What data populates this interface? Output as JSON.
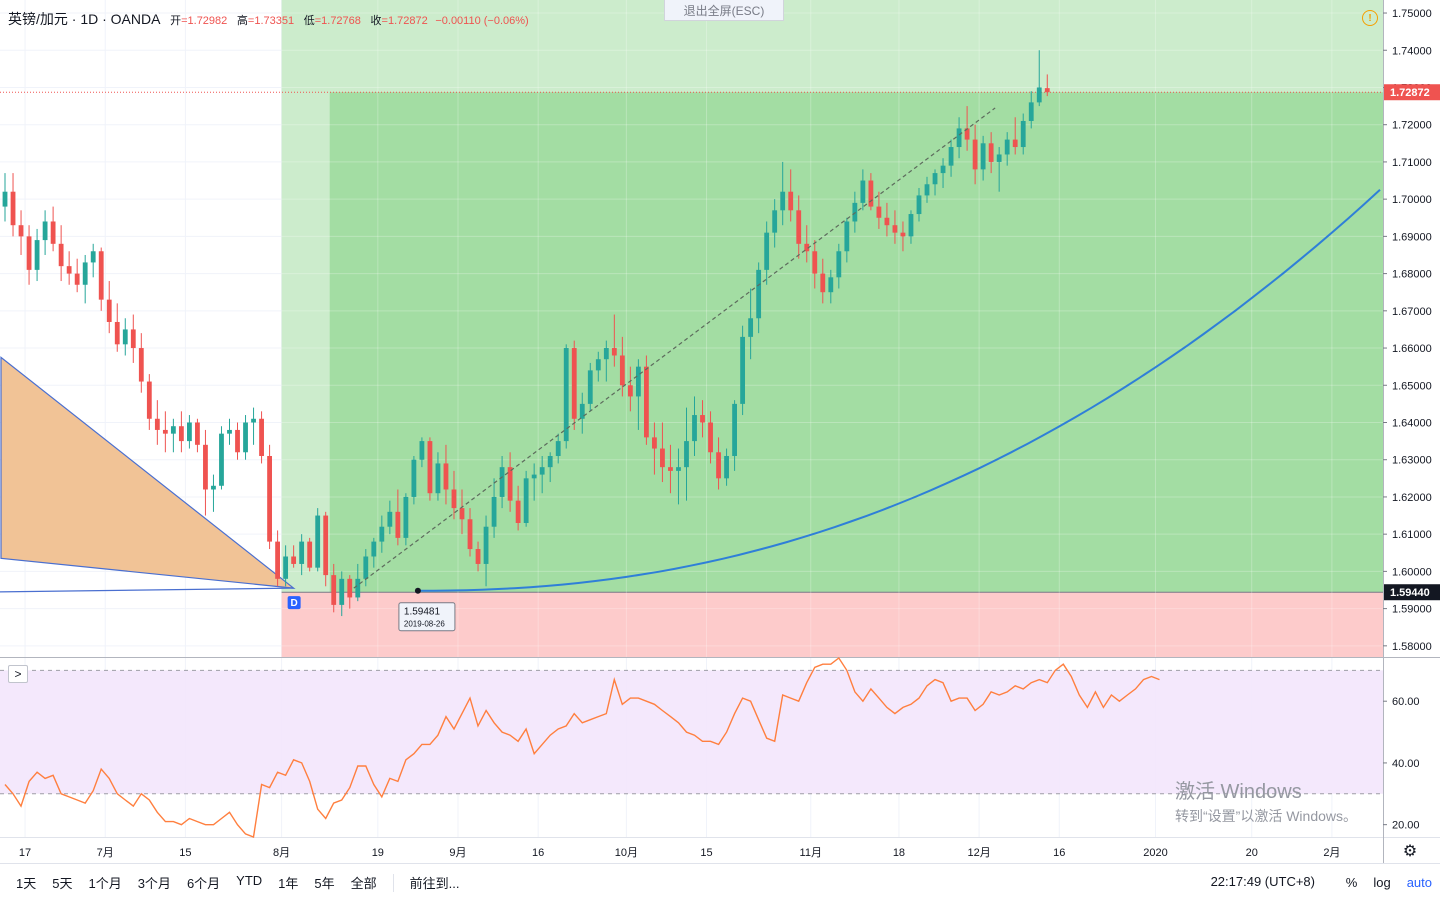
{
  "legend": {
    "symbol": "英镑/加元 · 1D · OANDA",
    "open_label": "开",
    "open": "=1.72982",
    "high_label": "高",
    "high": "=1.73351",
    "low_label": "低",
    "low": "=1.72768",
    "close_label": "收",
    "close": "=1.72872",
    "change": "−0.00110 (−0.06%)"
  },
  "exit_fullscreen": "退出全屏(ESC)",
  "price_badges": {
    "last": "1.72872",
    "entry": "1.59440"
  },
  "marker": {
    "label": "D"
  },
  "tooltip": {
    "price": "1.59481",
    "date": "2019-08-26"
  },
  "rsi_toggle": ">",
  "time_axis": {
    "labels": [
      {
        "text": "17",
        "t": 3
      },
      {
        "text": "7月",
        "t": 13
      },
      {
        "text": "15",
        "t": 23
      },
      {
        "text": "8月",
        "t": 35
      },
      {
        "text": "19",
        "t": 47
      },
      {
        "text": "9月",
        "t": 57
      },
      {
        "text": "16",
        "t": 67
      },
      {
        "text": "10月",
        "t": 78
      },
      {
        "text": "15",
        "t": 88
      },
      {
        "text": "11月",
        "t": 101
      },
      {
        "text": "18",
        "t": 112
      },
      {
        "text": "12月",
        "t": 122
      },
      {
        "text": "16",
        "t": 132
      },
      {
        "text": "2020",
        "t": 144
      },
      {
        "text": "20",
        "t": 156
      },
      {
        "text": "2月",
        "t": 166
      }
    ]
  },
  "bottom_bar": {
    "ranges": [
      "1天",
      "5天",
      "1个月",
      "3个月",
      "6个月",
      "YTD",
      "1年",
      "5年",
      "全部"
    ],
    "goto": "前往到...",
    "clock": "22:17:49 (UTC+8)",
    "percent": "%",
    "log": "log",
    "auto": "auto"
  },
  "watermark": {
    "line1": "激活 Windows",
    "line2": "转到“设置”以激活 Windows。"
  },
  "colors": {
    "up": "#26a69a",
    "down": "#ef5350",
    "rsi": "#ff7f3f",
    "curve": "#2f7fd8",
    "profit": "#9fdb9f",
    "profit_light": "#c9ebc9",
    "loss": "#fdc8c8"
  },
  "chart_data": [
    {
      "type": "candlestick",
      "title": "英镑/加元 · 1D · OANDA",
      "y_axis_labels": [
        "1.75000",
        "1.74000",
        "1.73000",
        "1.72000",
        "1.71000",
        "1.70000",
        "1.69000",
        "1.68000",
        "1.67000",
        "1.66000",
        "1.65000",
        "1.64000",
        "1.63000",
        "1.62000",
        "1.61000",
        "1.60000",
        "1.59000",
        "1.58000"
      ],
      "ylim": [
        1.577,
        1.7535
      ],
      "last_price": 1.72872,
      "position": {
        "entry": 1.5944,
        "target": 1.72872,
        "stop": 1.577,
        "start_t": 35,
        "entry_t": 41
      },
      "pattern_triangle": {
        "points": [
          [
            0,
            1.6575
          ],
          [
            0,
            1.6035
          ],
          [
            36.5,
            1.5955
          ]
        ],
        "base_y": 1.5945
      },
      "trend_line": {
        "from": [
          44,
          1.5955
        ],
        "to": [
          124,
          1.7245
        ]
      },
      "curve": {
        "from_t": 52,
        "from_y": 1.5948,
        "to_t": 172,
        "to_y": 1.7025
      },
      "candles": [
        [
          1.698,
          1.707,
          1.694,
          1.702
        ],
        [
          1.702,
          1.707,
          1.69,
          1.693
        ],
        [
          1.693,
          1.697,
          1.685,
          1.69
        ],
        [
          1.69,
          1.693,
          1.677,
          1.681
        ],
        [
          1.681,
          1.692,
          1.678,
          1.689
        ],
        [
          1.689,
          1.697,
          1.685,
          1.694
        ],
        [
          1.694,
          1.698,
          1.686,
          1.688
        ],
        [
          1.688,
          1.693,
          1.678,
          1.682
        ],
        [
          1.682,
          1.686,
          1.677,
          1.68
        ],
        [
          1.68,
          1.684,
          1.675,
          1.677
        ],
        [
          1.677,
          1.685,
          1.672,
          1.683
        ],
        [
          1.683,
          1.688,
          1.679,
          1.686
        ],
        [
          1.686,
          1.687,
          1.67,
          1.673
        ],
        [
          1.673,
          1.678,
          1.664,
          1.667
        ],
        [
          1.667,
          1.672,
          1.659,
          1.661
        ],
        [
          1.661,
          1.668,
          1.658,
          1.665
        ],
        [
          1.665,
          1.669,
          1.656,
          1.66
        ],
        [
          1.66,
          1.664,
          1.648,
          1.651
        ],
        [
          1.651,
          1.653,
          1.638,
          1.641
        ],
        [
          1.641,
          1.646,
          1.634,
          1.638
        ],
        [
          1.638,
          1.643,
          1.632,
          1.637
        ],
        [
          1.637,
          1.641,
          1.632,
          1.639
        ],
        [
          1.639,
          1.643,
          1.632,
          1.635
        ],
        [
          1.635,
          1.642,
          1.633,
          1.64
        ],
        [
          1.64,
          1.641,
          1.632,
          1.634
        ],
        [
          1.634,
          1.638,
          1.615,
          1.622
        ],
        [
          1.622,
          1.626,
          1.616,
          1.623
        ],
        [
          1.623,
          1.639,
          1.622,
          1.637
        ],
        [
          1.637,
          1.641,
          1.634,
          1.638
        ],
        [
          1.638,
          1.64,
          1.63,
          1.632
        ],
        [
          1.632,
          1.642,
          1.63,
          1.64
        ],
        [
          1.64,
          1.644,
          1.634,
          1.641
        ],
        [
          1.641,
          1.643,
          1.629,
          1.631
        ],
        [
          1.631,
          1.634,
          1.606,
          1.608
        ],
        [
          1.608,
          1.611,
          1.596,
          1.598
        ],
        [
          1.598,
          1.607,
          1.596,
          1.604
        ],
        [
          1.604,
          1.607,
          1.601,
          1.602
        ],
        [
          1.602,
          1.61,
          1.599,
          1.608
        ],
        [
          1.608,
          1.609,
          1.6,
          1.601
        ],
        [
          1.601,
          1.617,
          1.6,
          1.615
        ],
        [
          1.615,
          1.616,
          1.596,
          1.599
        ],
        [
          1.599,
          1.602,
          1.589,
          1.591
        ],
        [
          1.591,
          1.6,
          1.588,
          1.598
        ],
        [
          1.598,
          1.599,
          1.59,
          1.593
        ],
        [
          1.593,
          1.602,
          1.592,
          1.598
        ],
        [
          1.598,
          1.606,
          1.596,
          1.604
        ],
        [
          1.604,
          1.609,
          1.601,
          1.608
        ],
        [
          1.608,
          1.615,
          1.605,
          1.612
        ],
        [
          1.612,
          1.619,
          1.61,
          1.616
        ],
        [
          1.616,
          1.622,
          1.607,
          1.609
        ],
        [
          1.609,
          1.621,
          1.607,
          1.62
        ],
        [
          1.62,
          1.631,
          1.618,
          1.63
        ],
        [
          1.63,
          1.636,
          1.628,
          1.635
        ],
        [
          1.635,
          1.636,
          1.619,
          1.621
        ],
        [
          1.621,
          1.632,
          1.619,
          1.629
        ],
        [
          1.629,
          1.634,
          1.618,
          1.622
        ],
        [
          1.622,
          1.627,
          1.614,
          1.617
        ],
        [
          1.617,
          1.622,
          1.61,
          1.614
        ],
        [
          1.614,
          1.617,
          1.604,
          1.606
        ],
        [
          1.606,
          1.608,
          1.6,
          1.602
        ],
        [
          1.602,
          1.615,
          1.596,
          1.612
        ],
        [
          1.612,
          1.625,
          1.609,
          1.62
        ],
        [
          1.62,
          1.631,
          1.617,
          1.628
        ],
        [
          1.628,
          1.632,
          1.616,
          1.619
        ],
        [
          1.619,
          1.623,
          1.611,
          1.613
        ],
        [
          1.613,
          1.627,
          1.612,
          1.625
        ],
        [
          1.625,
          1.629,
          1.619,
          1.626
        ],
        [
          1.626,
          1.631,
          1.621,
          1.628
        ],
        [
          1.628,
          1.632,
          1.624,
          1.631
        ],
        [
          1.631,
          1.637,
          1.629,
          1.635
        ],
        [
          1.635,
          1.661,
          1.633,
          1.66
        ],
        [
          1.66,
          1.662,
          1.638,
          1.641
        ],
        [
          1.641,
          1.648,
          1.637,
          1.645
        ],
        [
          1.645,
          1.656,
          1.643,
          1.654
        ],
        [
          1.654,
          1.659,
          1.651,
          1.657
        ],
        [
          1.657,
          1.662,
          1.651,
          1.66
        ],
        [
          1.66,
          1.669,
          1.655,
          1.658
        ],
        [
          1.658,
          1.663,
          1.647,
          1.65
        ],
        [
          1.65,
          1.655,
          1.643,
          1.647
        ],
        [
          1.647,
          1.657,
          1.638,
          1.655
        ],
        [
          1.655,
          1.658,
          1.634,
          1.636
        ],
        [
          1.636,
          1.64,
          1.626,
          1.633
        ],
        [
          1.633,
          1.64,
          1.624,
          1.628
        ],
        [
          1.628,
          1.634,
          1.621,
          1.627
        ],
        [
          1.627,
          1.633,
          1.618,
          1.628
        ],
        [
          1.628,
          1.644,
          1.619,
          1.635
        ],
        [
          1.635,
          1.647,
          1.631,
          1.642
        ],
        [
          1.642,
          1.646,
          1.636,
          1.64
        ],
        [
          1.64,
          1.643,
          1.629,
          1.632
        ],
        [
          1.632,
          1.636,
          1.622,
          1.625
        ],
        [
          1.625,
          1.633,
          1.623,
          1.631
        ],
        [
          1.631,
          1.646,
          1.627,
          1.645
        ],
        [
          1.645,
          1.666,
          1.642,
          1.663
        ],
        [
          1.663,
          1.676,
          1.657,
          1.668
        ],
        [
          1.668,
          1.683,
          1.664,
          1.681
        ],
        [
          1.681,
          1.694,
          1.677,
          1.691
        ],
        [
          1.691,
          1.7,
          1.687,
          1.697
        ],
        [
          1.697,
          1.71,
          1.693,
          1.702
        ],
        [
          1.702,
          1.708,
          1.694,
          1.697
        ],
        [
          1.697,
          1.701,
          1.684,
          1.688
        ],
        [
          1.688,
          1.693,
          1.683,
          1.686
        ],
        [
          1.686,
          1.689,
          1.676,
          1.68
        ],
        [
          1.68,
          1.684,
          1.672,
          1.675
        ],
        [
          1.675,
          1.681,
          1.672,
          1.679
        ],
        [
          1.679,
          1.688,
          1.676,
          1.686
        ],
        [
          1.686,
          1.695,
          1.683,
          1.694
        ],
        [
          1.694,
          1.702,
          1.691,
          1.699
        ],
        [
          1.699,
          1.708,
          1.697,
          1.705
        ],
        [
          1.705,
          1.707,
          1.697,
          1.698
        ],
        [
          1.698,
          1.702,
          1.692,
          1.695
        ],
        [
          1.695,
          1.699,
          1.69,
          1.693
        ],
        [
          1.693,
          1.697,
          1.688,
          1.691
        ],
        [
          1.691,
          1.694,
          1.686,
          1.69
        ],
        [
          1.69,
          1.697,
          1.688,
          1.696
        ],
        [
          1.696,
          1.703,
          1.694,
          1.701
        ],
        [
          1.701,
          1.706,
          1.699,
          1.704
        ],
        [
          1.704,
          1.708,
          1.701,
          1.707
        ],
        [
          1.707,
          1.711,
          1.703,
          1.709
        ],
        [
          1.709,
          1.716,
          1.706,
          1.714
        ],
        [
          1.714,
          1.722,
          1.711,
          1.719
        ],
        [
          1.719,
          1.725,
          1.713,
          1.716
        ],
        [
          1.716,
          1.72,
          1.704,
          1.708
        ],
        [
          1.708,
          1.717,
          1.705,
          1.715
        ],
        [
          1.715,
          1.718,
          1.707,
          1.71
        ],
        [
          1.71,
          1.714,
          1.702,
          1.712
        ],
        [
          1.712,
          1.718,
          1.709,
          1.716
        ],
        [
          1.716,
          1.722,
          1.712,
          1.714
        ],
        [
          1.714,
          1.723,
          1.712,
          1.721
        ],
        [
          1.721,
          1.729,
          1.719,
          1.726
        ],
        [
          1.726,
          1.74,
          1.725,
          1.73
        ],
        [
          1.72982,
          1.73351,
          1.72768,
          1.72872
        ]
      ]
    },
    {
      "type": "line",
      "title": "RSI",
      "y_axis_labels": [
        "60.00",
        "40.00",
        "20.00"
      ],
      "ylim": [
        16.0,
        74.0
      ],
      "bands": [
        30,
        70
      ],
      "values": [
        33,
        30,
        26,
        34,
        37,
        35,
        36,
        30,
        29,
        28,
        27,
        31,
        38,
        35,
        30,
        28,
        26,
        30,
        28,
        24,
        21,
        21,
        20,
        22,
        21,
        20,
        20,
        22,
        24,
        20,
        17,
        16,
        33,
        32,
        37,
        36,
        41,
        40,
        34,
        25,
        22,
        27,
        28,
        32,
        39,
        39,
        33,
        29,
        35,
        34,
        41,
        43,
        46,
        46,
        49,
        55,
        51,
        56,
        61,
        52,
        57,
        53,
        50,
        49,
        47,
        51,
        43,
        46,
        49,
        51,
        52,
        56,
        53,
        54,
        55,
        56,
        67,
        59,
        61,
        61,
        60,
        59,
        57,
        55,
        53,
        50,
        49,
        47,
        47,
        46,
        50,
        56,
        61,
        60,
        54,
        48,
        47,
        62,
        61,
        60,
        66,
        71,
        72,
        72,
        74,
        70,
        63,
        60,
        64,
        61,
        58,
        56,
        58,
        59,
        61,
        65,
        67,
        66,
        60,
        61,
        61,
        57,
        59,
        63,
        62,
        63,
        65,
        64,
        66,
        67,
        66,
        70,
        72,
        68,
        62,
        58,
        63,
        58,
        62,
        60,
        62,
        64,
        67,
        68,
        67
      ]
    }
  ]
}
